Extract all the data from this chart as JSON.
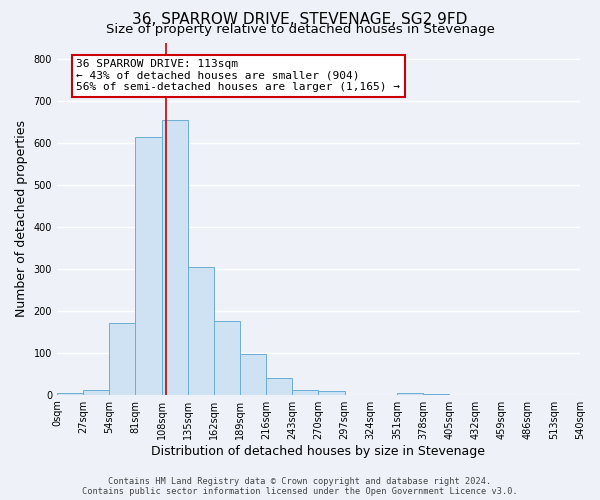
{
  "title": "36, SPARROW DRIVE, STEVENAGE, SG2 9FD",
  "subtitle": "Size of property relative to detached houses in Stevenage",
  "xlabel": "Distribution of detached houses by size in Stevenage",
  "ylabel": "Number of detached properties",
  "bin_edges": [
    0,
    27,
    54,
    81,
    108,
    135,
    162,
    189,
    216,
    243,
    270,
    297,
    324,
    351,
    378,
    405,
    432,
    459,
    486,
    513,
    540
  ],
  "bar_heights": [
    4,
    12,
    170,
    615,
    655,
    305,
    175,
    97,
    40,
    12,
    10,
    0,
    0,
    4,
    2,
    0,
    0,
    0,
    0,
    0
  ],
  "bar_color": "#cfe2f3",
  "bar_edge_color": "#6aaed6",
  "property_size": 113,
  "vline_color": "#cc0000",
  "annotation_text": "36 SPARROW DRIVE: 113sqm\n← 43% of detached houses are smaller (904)\n56% of semi-detached houses are larger (1,165) →",
  "annotation_box_color": "#ffffff",
  "annotation_box_edge_color": "#cc0000",
  "ylim": [
    0,
    840
  ],
  "yticks": [
    0,
    100,
    200,
    300,
    400,
    500,
    600,
    700,
    800
  ],
  "footer_line1": "Contains HM Land Registry data © Crown copyright and database right 2024.",
  "footer_line2": "Contains public sector information licensed under the Open Government Licence v3.0.",
  "background_color": "#eef2f8",
  "grid_color": "#ffffff",
  "title_fontsize": 11,
  "subtitle_fontsize": 9.5,
  "tick_label_fontsize": 7,
  "axis_label_fontsize": 9,
  "ylabel_text": "Number of detached properties",
  "annotation_fontsize": 8,
  "footer_fontsize": 6.2
}
